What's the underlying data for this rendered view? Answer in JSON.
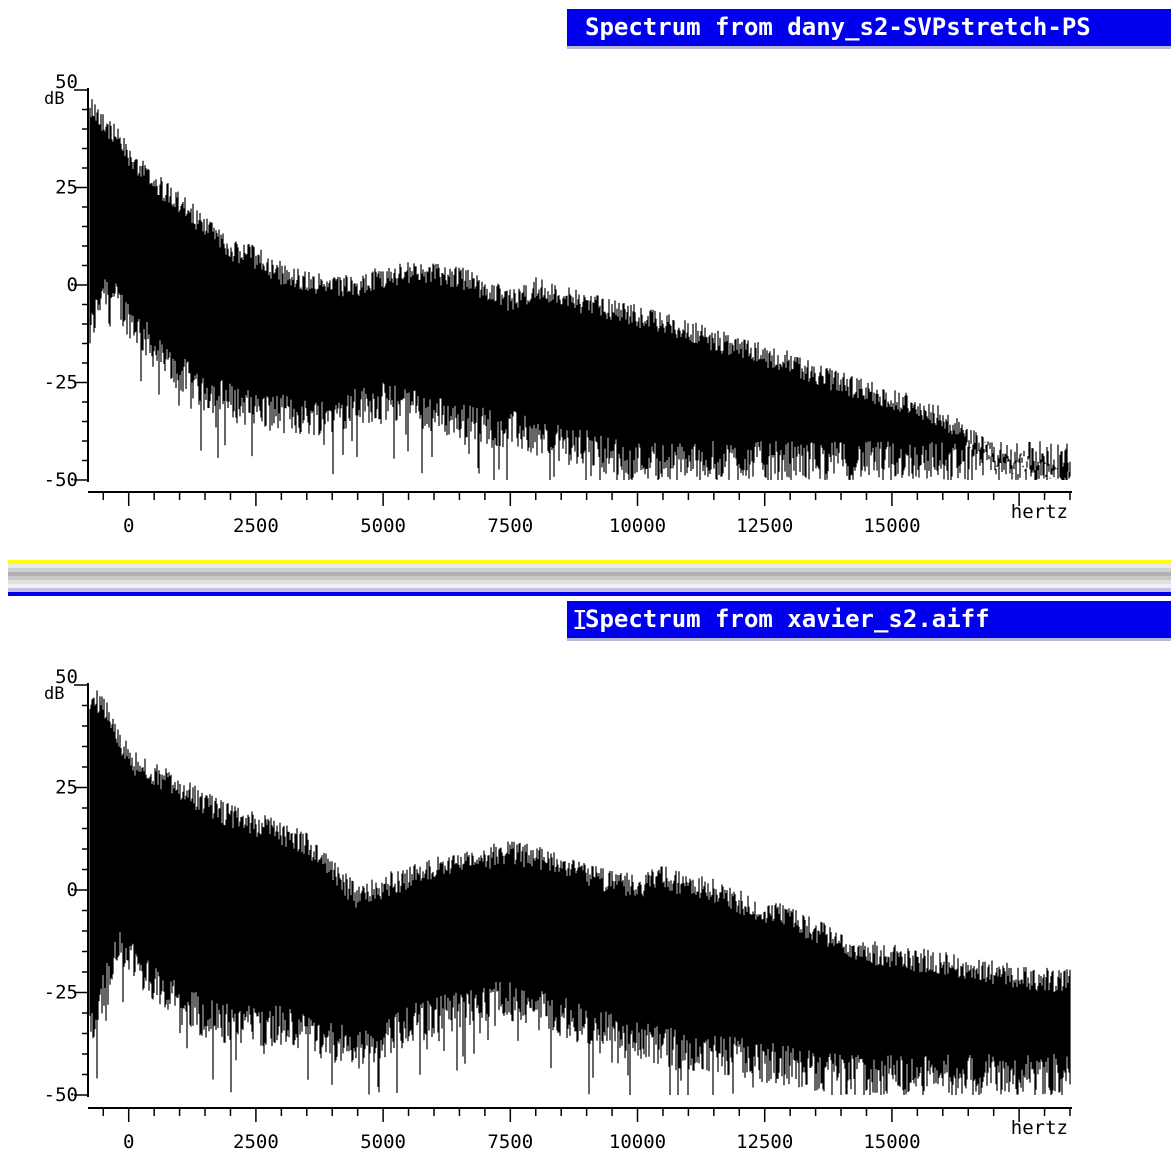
{
  "chart_data": [
    {
      "type": "line",
      "title": "Spectrum from dany_s2-SVPstretch-PS",
      "xlabel": "hertz",
      "ylabel": "dB",
      "xlim": [
        -800,
        18500
      ],
      "ylim": [
        -50,
        50
      ],
      "x_ticks": [
        0,
        2500,
        5000,
        7500,
        10000,
        12500,
        15000
      ],
      "y_ticks": [
        50,
        25,
        0,
        -25,
        -50
      ],
      "series": [
        {
          "x": [
            -800,
            -500,
            -200,
            100,
            400,
            700,
            1000,
            1500,
            2000,
            2500,
            3000,
            3500,
            4000,
            4500,
            5000,
            5500,
            6000,
            6500,
            7000,
            7500,
            8000,
            8500,
            9000,
            9500,
            10000,
            10500,
            11000,
            11500,
            12000,
            12500,
            13000,
            13500,
            14000,
            14500,
            15000,
            15500,
            16000,
            16500,
            17000,
            17500,
            18000,
            18500
          ],
          "upper": [
            50,
            45,
            40,
            35,
            31,
            27,
            24,
            18,
            12,
            10,
            6,
            4,
            2,
            3,
            5,
            6,
            6,
            5,
            2,
            -1,
            2,
            0,
            -2,
            -3,
            -5,
            -7,
            -9,
            -11,
            -13,
            -15,
            -17,
            -20,
            -22,
            -24,
            -26,
            -28,
            -31,
            -36,
            -41,
            -43,
            -45,
            -48
          ],
          "lower": [
            -20,
            -5,
            -10,
            -15,
            -20,
            -25,
            -28,
            -32,
            -35,
            -37,
            -38,
            -39,
            -38,
            -36,
            -35,
            -36,
            -38,
            -40,
            -41,
            -42,
            -44,
            -46,
            -47,
            -49,
            -50,
            -50,
            -50,
            -50,
            -50,
            -50,
            -50,
            -50,
            -50,
            -50,
            -50,
            -50,
            -50,
            -50,
            -50,
            -50,
            -50,
            -50
          ]
        }
      ]
    },
    {
      "type": "line",
      "title": "Spectrum from xavier_s2.aiff",
      "xlabel": "hertz",
      "ylabel": "dB",
      "xlim": [
        -800,
        18500
      ],
      "ylim": [
        -50,
        50
      ],
      "x_ticks": [
        0,
        2500,
        5000,
        7500,
        10000,
        12500,
        15000
      ],
      "y_ticks": [
        50,
        25,
        0,
        -25,
        -50
      ],
      "series": [
        {
          "x": [
            -800,
            -500,
            -200,
            100,
            400,
            700,
            1000,
            1500,
            2000,
            2500,
            3000,
            3500,
            4000,
            4500,
            5000,
            5500,
            6000,
            6500,
            7000,
            7500,
            8000,
            8500,
            9000,
            9500,
            10000,
            10500,
            11000,
            11500,
            12000,
            12500,
            13000,
            13500,
            14000,
            14500,
            15000,
            15500,
            16000,
            16500,
            17000,
            17500,
            18000,
            18500
          ],
          "upper": [
            50,
            48,
            40,
            34,
            32,
            30,
            28,
            24,
            21,
            19,
            17,
            14,
            8,
            1,
            4,
            6,
            8,
            10,
            11,
            12,
            11,
            9,
            7,
            5,
            4,
            6,
            4,
            3,
            0,
            -2,
            -4,
            -7,
            -10,
            -12,
            -13,
            -14,
            -15,
            -16,
            -17,
            -18,
            -19,
            -19
          ],
          "lower": [
            -40,
            -30,
            -20,
            -22,
            -26,
            -30,
            -33,
            -36,
            -38,
            -38,
            -38,
            -40,
            -42,
            -44,
            -42,
            -38,
            -36,
            -34,
            -32,
            -32,
            -34,
            -36,
            -38,
            -40,
            -42,
            -43,
            -44,
            -45,
            -46,
            -47,
            -48,
            -49,
            -50,
            -50,
            -50,
            -50,
            -50,
            -50,
            -50,
            -50,
            -50,
            -50
          ]
        }
      ]
    }
  ],
  "colors": {
    "titlebar_bg": "#0000ee",
    "titlebar_text": "#ffffff",
    "plot_fill": "#000000",
    "divider_yellow": "#ffff00",
    "divider_blue": "#0000ee"
  },
  "panels": [
    {
      "title": "Spectrum from dany_s2-SVPstretch-PS",
      "cursor_glyph": ""
    },
    {
      "title": "Spectrum from xavier_s2.aiff",
      "cursor_glyph": "I"
    }
  ]
}
